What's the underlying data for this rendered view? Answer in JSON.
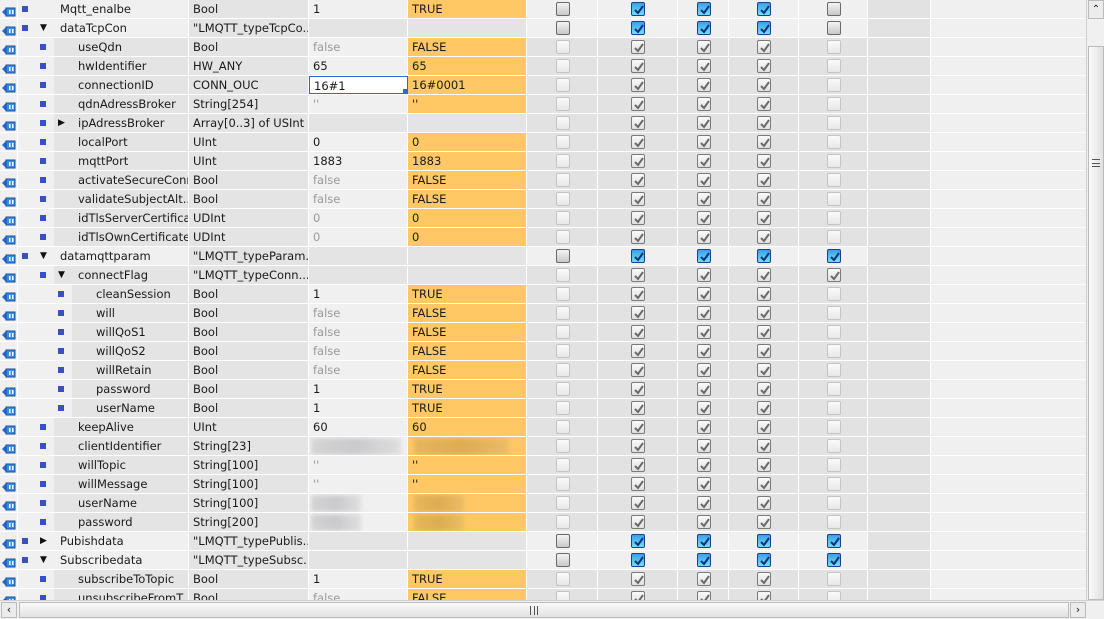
{
  "colors": {
    "monitor_bg": "#ffc864",
    "bullet": "#3a4fc0",
    "checkbox_active": "#3aa0e8",
    "focus": "#2a6ad0"
  },
  "icons": {
    "row_icon": "interface-io-icon",
    "bullet": "member-square-icon",
    "expand_open": "triangle-down-icon",
    "expand_closed": "triangle-right-icon",
    "scroll_up": "chevron-up-icon",
    "scroll_left": "chevron-left-icon",
    "scroll_right": "chevron-right-icon"
  },
  "checkbox_legend": {
    "oa": "unchecked-editable",
    "na": "checked-editable",
    "od": "unchecked-readonly",
    "nd": "checked-readonly"
  },
  "rows": [
    {
      "name": "Mqtt_enalbe",
      "level": 0,
      "exp": "",
      "type": "Bool",
      "start": "1",
      "monitor": "TRUE",
      "cb": [
        "oa",
        "na",
        "na",
        "na",
        "oa"
      ]
    },
    {
      "name": "dataTcpCon",
      "level": 0,
      "exp": "open",
      "type": "\"LMQTT_typeTcpCo...",
      "start": "",
      "monitor": "",
      "struct": true,
      "cb": [
        "oa",
        "na",
        "na",
        "na",
        "oa"
      ]
    },
    {
      "name": "useQdn",
      "level": 1,
      "exp": "",
      "type": "Bool",
      "start": "false",
      "startGray": true,
      "monitor": "FALSE",
      "cb": [
        "od",
        "nd",
        "nd",
        "nd",
        "od"
      ]
    },
    {
      "name": "hwIdentifier",
      "level": 1,
      "exp": "",
      "type": "HW_ANY",
      "start": "65",
      "monitor": "65",
      "cb": [
        "od",
        "nd",
        "nd",
        "nd",
        "od"
      ]
    },
    {
      "name": "connectionID",
      "level": 1,
      "exp": "",
      "type": "CONN_OUC",
      "start": "16#1",
      "focus": true,
      "monitor": "16#0001",
      "cb": [
        "od",
        "nd",
        "nd",
        "nd",
        "od"
      ]
    },
    {
      "name": "qdnAdressBroker",
      "level": 1,
      "exp": "",
      "type": "String[254]",
      "start": "''",
      "startGray": true,
      "monitor": "''",
      "cb": [
        "od",
        "nd",
        "nd",
        "nd",
        "od"
      ]
    },
    {
      "name": "ipAdressBroker",
      "level": 1,
      "exp": "closed",
      "type": "Array[0..3] of USInt",
      "start": "",
      "monitor": "",
      "struct": true,
      "cb": [
        "od",
        "nd",
        "nd",
        "nd",
        "od"
      ]
    },
    {
      "name": "localPort",
      "level": 1,
      "exp": "",
      "type": "UInt",
      "start": "0",
      "monitor": "0",
      "cb": [
        "od",
        "nd",
        "nd",
        "nd",
        "od"
      ]
    },
    {
      "name": "mqttPort",
      "level": 1,
      "exp": "",
      "type": "UInt",
      "start": "1883",
      "monitor": "1883",
      "cb": [
        "od",
        "nd",
        "nd",
        "nd",
        "od"
      ]
    },
    {
      "name": "activateSecureConn",
      "level": 1,
      "exp": "",
      "type": "Bool",
      "start": "false",
      "startGray": true,
      "monitor": "FALSE",
      "cb": [
        "od",
        "nd",
        "nd",
        "nd",
        "od"
      ]
    },
    {
      "name": "validateSubjectAlt...",
      "level": 1,
      "exp": "",
      "type": "Bool",
      "start": "false",
      "startGray": true,
      "monitor": "FALSE",
      "cb": [
        "od",
        "nd",
        "nd",
        "nd",
        "od"
      ]
    },
    {
      "name": "idTlsServerCertifica...",
      "level": 1,
      "exp": "",
      "type": "UDInt",
      "start": "0",
      "startGray": true,
      "monitor": "0",
      "cb": [
        "od",
        "nd",
        "nd",
        "nd",
        "od"
      ]
    },
    {
      "name": "idTlsOwnCertificate",
      "level": 1,
      "exp": "",
      "type": "UDInt",
      "start": "0",
      "startGray": true,
      "monitor": "0",
      "cb": [
        "od",
        "nd",
        "nd",
        "nd",
        "od"
      ]
    },
    {
      "name": "datamqttparam",
      "level": 0,
      "exp": "open",
      "type": "\"LMQTT_typeParam...",
      "start": "",
      "monitor": "",
      "struct": true,
      "cb": [
        "oa",
        "na",
        "na",
        "na",
        "na"
      ]
    },
    {
      "name": "connectFlag",
      "level": 1,
      "exp": "open",
      "type": "\"LMQTT_typeConn...",
      "start": "",
      "monitor": "",
      "struct": true,
      "cb": [
        "od",
        "nd",
        "nd",
        "nd",
        "nd"
      ]
    },
    {
      "name": "cleanSession",
      "level": 2,
      "exp": "",
      "type": "Bool",
      "start": "1",
      "monitor": "TRUE",
      "cb": [
        "od",
        "nd",
        "nd",
        "nd",
        "od"
      ]
    },
    {
      "name": "will",
      "level": 2,
      "exp": "",
      "type": "Bool",
      "start": "false",
      "startGray": true,
      "monitor": "FALSE",
      "cb": [
        "od",
        "nd",
        "nd",
        "nd",
        "od"
      ]
    },
    {
      "name": "willQoS1",
      "level": 2,
      "exp": "",
      "type": "Bool",
      "start": "false",
      "startGray": true,
      "monitor": "FALSE",
      "cb": [
        "od",
        "nd",
        "nd",
        "nd",
        "od"
      ]
    },
    {
      "name": "willQoS2",
      "level": 2,
      "exp": "",
      "type": "Bool",
      "start": "false",
      "startGray": true,
      "monitor": "FALSE",
      "cb": [
        "od",
        "nd",
        "nd",
        "nd",
        "od"
      ]
    },
    {
      "name": "willRetain",
      "level": 2,
      "exp": "",
      "type": "Bool",
      "start": "false",
      "startGray": true,
      "monitor": "FALSE",
      "cb": [
        "od",
        "nd",
        "nd",
        "nd",
        "od"
      ]
    },
    {
      "name": "password",
      "level": 2,
      "exp": "",
      "type": "Bool",
      "start": "1",
      "monitor": "TRUE",
      "cb": [
        "od",
        "nd",
        "nd",
        "nd",
        "od"
      ]
    },
    {
      "name": "userName",
      "level": 2,
      "exp": "",
      "type": "Bool",
      "start": "1",
      "monitor": "TRUE",
      "cb": [
        "od",
        "nd",
        "nd",
        "nd",
        "od"
      ]
    },
    {
      "name": "keepAlive",
      "level": 1,
      "exp": "",
      "type": "UInt",
      "start": "60",
      "monitor": "60",
      "cb": [
        "od",
        "nd",
        "nd",
        "nd",
        "od"
      ]
    },
    {
      "name": "clientIdentifier",
      "level": 1,
      "exp": "",
      "type": "String[23]",
      "start": "",
      "monitor": "",
      "redacted": true,
      "cb": [
        "od",
        "nd",
        "nd",
        "nd",
        "od"
      ]
    },
    {
      "name": "willTopic",
      "level": 1,
      "exp": "",
      "type": "String[100]",
      "start": "''",
      "startGray": true,
      "monitor": "''",
      "cb": [
        "od",
        "nd",
        "nd",
        "nd",
        "od"
      ]
    },
    {
      "name": "willMessage",
      "level": 1,
      "exp": "",
      "type": "String[100]",
      "start": "''",
      "startGray": true,
      "monitor": "''",
      "cb": [
        "od",
        "nd",
        "nd",
        "nd",
        "od"
      ]
    },
    {
      "name": "userName",
      "level": 1,
      "exp": "",
      "type": "String[100]",
      "start": "",
      "monitor": "",
      "redacted": true,
      "cb": [
        "od",
        "nd",
        "nd",
        "nd",
        "od"
      ]
    },
    {
      "name": "password",
      "level": 1,
      "exp": "",
      "type": "String[200]",
      "start": "",
      "monitor": "",
      "redacted": true,
      "cb": [
        "od",
        "nd",
        "nd",
        "nd",
        "od"
      ]
    },
    {
      "name": "Pubishdata",
      "level": 0,
      "exp": "closed",
      "type": "\"LMQTT_typePublis...",
      "start": "",
      "monitor": "",
      "struct": true,
      "cb": [
        "oa",
        "na",
        "na",
        "na",
        "na"
      ]
    },
    {
      "name": "Subscribedata",
      "level": 0,
      "exp": "open",
      "type": "\"LMQTT_typeSubsc...",
      "start": "",
      "monitor": "",
      "struct": true,
      "cb": [
        "oa",
        "na",
        "na",
        "na",
        "na"
      ]
    },
    {
      "name": "subscribeToTopic",
      "level": 1,
      "exp": "",
      "type": "Bool",
      "start": "1",
      "monitor": "TRUE",
      "cb": [
        "od",
        "nd",
        "nd",
        "nd",
        "od"
      ]
    },
    {
      "name": "unsubscribeFromT",
      "level": 1,
      "exp": "",
      "type": "Bool",
      "start": "false",
      "startGray": true,
      "monitor": "FALSE",
      "cb": [
        "od",
        "nd",
        "nd",
        "nd",
        "od"
      ]
    }
  ]
}
